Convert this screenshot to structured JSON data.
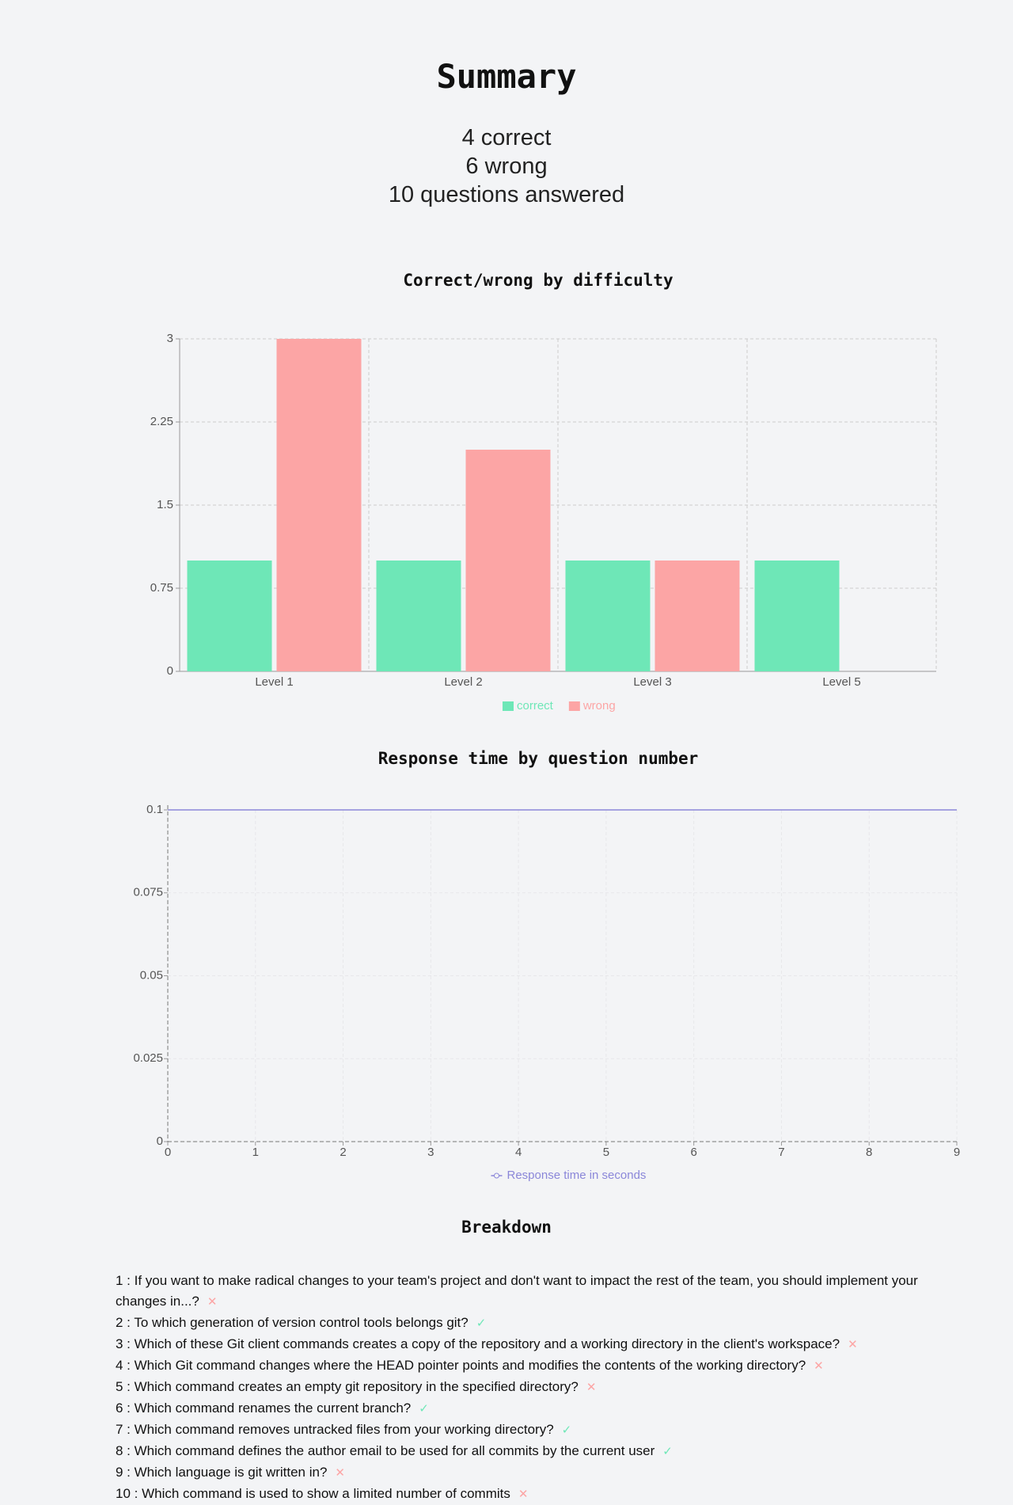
{
  "header": {
    "title": "Summary"
  },
  "summary": [
    "4 correct",
    "6 wrong",
    "10 questions answered"
  ],
  "chart_data": [
    {
      "type": "bar",
      "title": "Correct/wrong by difficulty",
      "categories": [
        "Level 1",
        "Level 2",
        "Level 3",
        "Level 5"
      ],
      "series": [
        {
          "name": "correct",
          "color": "#6ee7b7",
          "values": [
            1,
            1,
            1,
            1
          ]
        },
        {
          "name": "wrong",
          "color": "#fca5a5",
          "values": [
            3,
            2,
            1,
            0
          ]
        }
      ],
      "ylim": [
        0,
        3
      ],
      "yticks": [
        0,
        0.75,
        1.5,
        2.25,
        3
      ],
      "grid": true
    },
    {
      "type": "line",
      "title": "Response time by question number",
      "x": [
        0,
        1,
        2,
        3,
        4,
        5,
        6,
        7,
        8,
        9
      ],
      "series": [
        {
          "name": "Response time in seconds",
          "color": "#8b87d9",
          "values": [
            0.1,
            0.1,
            0.1,
            0.1,
            0.1,
            0.1,
            0.1,
            0.1,
            0.1,
            0.1
          ]
        }
      ],
      "xlim": [
        0,
        9
      ],
      "xticks": [
        0,
        1,
        2,
        3,
        4,
        5,
        6,
        7,
        8,
        9
      ],
      "ylim": [
        0,
        0.1
      ],
      "yticks": [
        0,
        0.025,
        0.05,
        0.075,
        0.1
      ],
      "grid": true
    }
  ],
  "breakdown": {
    "title": "Breakdown",
    "items": [
      {
        "text": "1 : If you want to make radical changes to your team's project and don't want to impact the rest of the team, you should implement your changes in...?",
        "mark": "✕",
        "correct": false
      },
      {
        "text": "2 : To which generation of version control tools belongs git?",
        "mark": "✓",
        "correct": true
      },
      {
        "text": "3 : Which of these Git client commands creates a copy of the repository and a working directory in the client's workspace?",
        "mark": "✕",
        "correct": false
      },
      {
        "text": "4 : Which Git command changes where the HEAD pointer points and modifies the contents of the working directory?",
        "mark": "✕",
        "correct": false
      },
      {
        "text": "5 : Which command creates an empty git repository in the specified directory?",
        "mark": "✕",
        "correct": false
      },
      {
        "text": "6 : Which command renames the current branch?",
        "mark": "✓",
        "correct": true
      },
      {
        "text": "7 : Which command removes untracked files from your working directory?",
        "mark": "✓",
        "correct": true
      },
      {
        "text": "8 : Which command defines the author email to be used for all commits by the current user",
        "mark": "✓",
        "correct": true
      },
      {
        "text": "9 : Which language is git written in?",
        "mark": "✕",
        "correct": false
      },
      {
        "text": "10 : Which command is used to show a limited number of commits",
        "mark": "✕",
        "correct": false
      }
    ]
  }
}
